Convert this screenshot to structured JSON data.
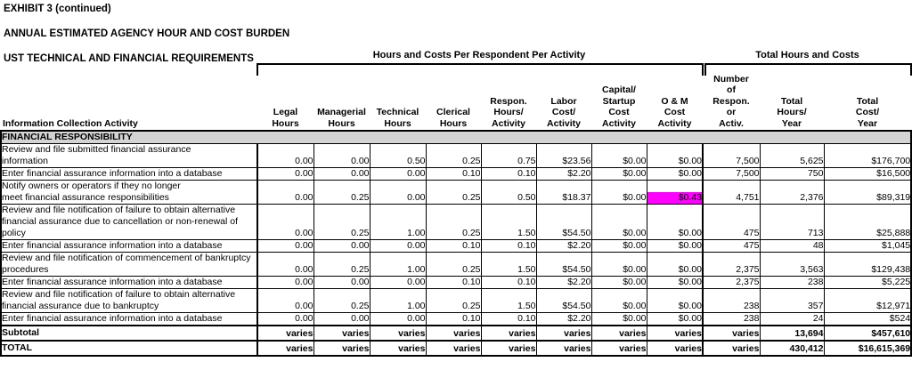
{
  "title": {
    "line1": "EXHIBIT 3 (continued)",
    "line2": "ANNUAL ESTIMATED AGENCY HOUR AND COST BURDEN",
    "line3": "UST TECHNICAL AND FINANCIAL REQUIREMENTS"
  },
  "table": {
    "group_headers": {
      "per_activity": "Hours and Costs Per Respondent Per Activity",
      "totals": "Total Hours and Costs"
    },
    "row_header": "Information Collection Activity",
    "section_header": "FINANCIAL RESPONSIBILITY",
    "columns": [
      "Legal\nHours",
      "Managerial\nHours",
      "Technical\nHours",
      "Clerical\nHours",
      "Respon.\nHours/\nActivity",
      "Labor\nCost/\nActivity",
      "Capital/\nStartup\nCost\nActivity",
      "O & M\nCost\nActivity",
      "Number\nof\nRespon.\nor\nActiv.",
      "Total\nHours/\nYear",
      "Total\nCost/\nYear"
    ],
    "rows": [
      {
        "kind": "data",
        "label": "Review and file submitted financial assurance\ninformation",
        "values": [
          "0.00",
          "0.00",
          "0.50",
          "0.25",
          "0.75",
          "$23.56",
          "$0.00",
          "$0.00",
          "7,500",
          "5,625",
          "$176,700"
        ]
      },
      {
        "kind": "data",
        "label": "Enter financial assurance information into a database",
        "values": [
          "0.00",
          "0.00",
          "0.00",
          "0.10",
          "0.10",
          "$2.20",
          "$0.00",
          "$0.00",
          "7,500",
          "750",
          "$16,500"
        ]
      },
      {
        "kind": "data",
        "label": "Notify owners or operators if they no longer\nmeet financial assurance responsibilities",
        "values": [
          "0.00",
          "0.25",
          "0.00",
          "0.25",
          "0.50",
          "$18.37",
          "$0.00",
          "$0.43",
          "4,751",
          "2,376",
          "$89,319"
        ],
        "highlight": 7
      },
      {
        "kind": "data",
        "label": "Review and file notification of failure to obtain alternative\nfinancial assurance due to cancellation or non-renewal of\npolicy",
        "values": [
          "0.00",
          "0.25",
          "1.00",
          "0.25",
          "1.50",
          "$54.50",
          "$0.00",
          "$0.00",
          "475",
          "713",
          "$25,888"
        ]
      },
      {
        "kind": "data",
        "label": "Enter financial assurance information into a database",
        "values": [
          "0.00",
          "0.00",
          "0.00",
          "0.10",
          "0.10",
          "$2.20",
          "$0.00",
          "$0.00",
          "475",
          "48",
          "$1,045"
        ]
      },
      {
        "kind": "data",
        "label": "Review and file notification of commencement of bankruptcy\nprocedures",
        "values": [
          "0.00",
          "0.25",
          "1.00",
          "0.25",
          "1.50",
          "$54.50",
          "$0.00",
          "$0.00",
          "2,375",
          "3,563",
          "$129,438"
        ]
      },
      {
        "kind": "data",
        "label": "Enter financial assurance information into a database",
        "values": [
          "0.00",
          "0.00",
          "0.00",
          "0.10",
          "0.10",
          "$2.20",
          "$0.00",
          "$0.00",
          "2,375",
          "238",
          "$5,225"
        ]
      },
      {
        "kind": "data",
        "label": "Review and file notification of failure to obtain alternative\nfinancial assurance due to bankruptcy",
        "values": [
          "0.00",
          "0.25",
          "1.00",
          "0.25",
          "1.50",
          "$54.50",
          "$0.00",
          "$0.00",
          "238",
          "357",
          "$12,971"
        ]
      },
      {
        "kind": "data",
        "label": "Enter financial assurance information into a database",
        "values": [
          "0.00",
          "0.00",
          "0.00",
          "0.10",
          "0.10",
          "$2.20",
          "$0.00",
          "$0.00",
          "238",
          "24",
          "$524"
        ]
      },
      {
        "kind": "summary",
        "label": "Subtotal",
        "values": [
          "varies",
          "varies",
          "varies",
          "varies",
          "varies",
          "varies",
          "varies",
          "varies",
          "varies",
          "13,694",
          "$457,610"
        ]
      },
      {
        "kind": "summary",
        "label": "TOTAL",
        "values": [
          "varies",
          "varies",
          "varies",
          "varies",
          "varies",
          "varies",
          "varies",
          "varies",
          "varies",
          "430,412",
          "$16,615,369"
        ]
      }
    ],
    "colors": {
      "highlight": "#ff00ff",
      "section_bg": "#d4d4d4"
    }
  }
}
